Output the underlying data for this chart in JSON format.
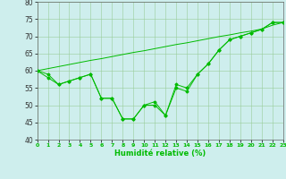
{
  "x": [
    0,
    1,
    2,
    3,
    4,
    5,
    6,
    7,
    8,
    9,
    10,
    11,
    12,
    13,
    14,
    15,
    16,
    17,
    18,
    19,
    20,
    21,
    22,
    23
  ],
  "y_line1": [
    60,
    59,
    56,
    57,
    58,
    59,
    52,
    52,
    46,
    46,
    50,
    51,
    47,
    56,
    55,
    59,
    62,
    66,
    69,
    70,
    71,
    72,
    74,
    74
  ],
  "y_line2": [
    60,
    58,
    56,
    57,
    58,
    59,
    52,
    52,
    46,
    46,
    50,
    50,
    47,
    55,
    54,
    59,
    62,
    66,
    69,
    70,
    71,
    72,
    74,
    74
  ],
  "y_trend": [
    60,
    60.6,
    61.2,
    61.8,
    62.4,
    63,
    63.5,
    64.1,
    64.7,
    65.3,
    65.8,
    66.4,
    67,
    67.6,
    68.1,
    68.7,
    69.3,
    69.9,
    70.4,
    71,
    71.5,
    72.1,
    73.2,
    74
  ],
  "xlabel": "Humidité relative (%)",
  "xlim": [
    0,
    23
  ],
  "ylim": [
    40,
    80
  ],
  "yticks": [
    40,
    45,
    50,
    55,
    60,
    65,
    70,
    75,
    80
  ],
  "xticks": [
    0,
    1,
    2,
    3,
    4,
    5,
    6,
    7,
    8,
    9,
    10,
    11,
    12,
    13,
    14,
    15,
    16,
    17,
    18,
    19,
    20,
    21,
    22,
    23
  ],
  "line_color": "#00BB00",
  "bg_color": "#CEEEED",
  "grid_color": "#99CC99"
}
